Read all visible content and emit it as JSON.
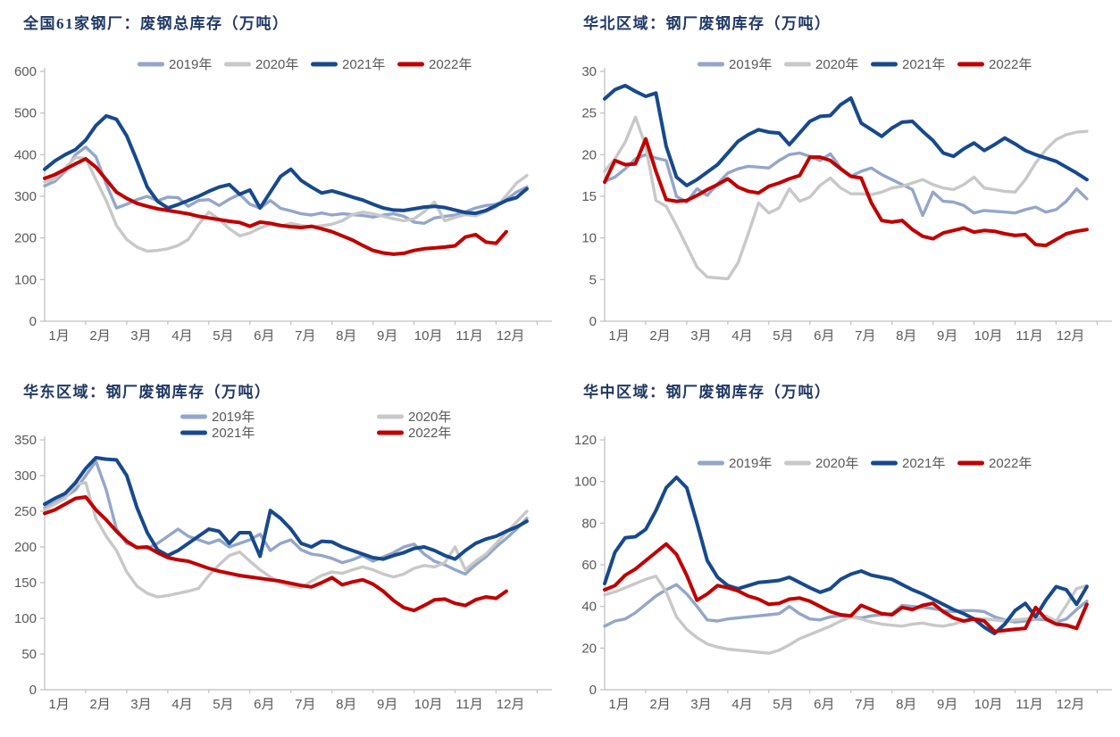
{
  "page": {
    "background": "#ffffff",
    "title_color": "#1F3864",
    "axis_text_color": "#595959",
    "axis_line_color": "#BFBFBF"
  },
  "chart_data": {
    "type": "line",
    "x_tick_labels": [
      "1月",
      "2月",
      "3月",
      "4月",
      "5月",
      "6月",
      "7月",
      "8月",
      "9月",
      "10月",
      "11月",
      "12月"
    ],
    "legend_entries": [
      "2019年",
      "2020年",
      "2021年",
      "2022年"
    ],
    "series_colors": {
      "2019年": "#94A6C9",
      "2020年": "#C8C8C8",
      "2021年": "#17498C",
      "2022年": "#C00000"
    },
    "grid": "off",
    "charts": [
      {
        "id": "national",
        "title": "全国61家钢厂：废钢总库存（万吨）",
        "ylim": [
          0,
          600
        ],
        "yticks": [
          0,
          100,
          200,
          300,
          400,
          500,
          600
        ],
        "legend_layout": "row",
        "series": [
          {
            "name": "2019年",
            "color": "#94A6C9",
            "values": [
              325,
              336,
              360,
              400,
              418,
              395,
              330,
              272,
              281,
              292,
              300,
              289,
              298,
              297,
              276,
              290,
              292,
              278,
              293,
              305,
              281,
              272,
              290,
              271,
              265,
              258,
              255,
              260,
              255,
              258,
              256,
              254,
              250,
              255,
              258,
              252,
              238,
              235,
              248,
              252,
              255,
              263,
              272,
              278,
              281,
              292,
              310,
              322
            ]
          },
          {
            "name": "2020年",
            "color": "#C8C8C8",
            "values": [
              335,
              342,
              368,
              393,
              391,
              340,
              290,
              230,
              196,
              178,
              168,
              170,
              174,
              182,
              196,
              232,
              262,
              245,
              222,
              205,
              212,
              224,
              233,
              228,
              235,
              230,
              226,
              229,
              233,
              241,
              256,
              262,
              258,
              252,
              246,
              241,
              246,
              263,
              286,
              241,
              249,
              256,
              253,
              263,
              274,
              302,
              332,
              350
            ]
          },
          {
            "name": "2021年",
            "color": "#17498C",
            "values": [
              365,
              385,
              400,
              412,
              435,
              470,
              493,
              485,
              445,
              385,
              322,
              288,
              272,
              280,
              290,
              300,
              312,
              322,
              328,
              305,
              315,
              272,
              310,
              348,
              365,
              338,
              322,
              308,
              313,
              306,
              298,
              291,
              281,
              272,
              267,
              266,
              270,
              274,
              276,
              273,
              267,
              261,
              259,
              266,
              278,
              290,
              297,
              318
            ]
          },
          {
            "name": "2022年",
            "color": "#C00000",
            "values": [
              343,
              352,
              365,
              378,
              390,
              370,
              340,
              310,
              295,
              283,
              276,
              270,
              266,
              262,
              258,
              252,
              248,
              244,
              240,
              237,
              228,
              238,
              235,
              230,
              227,
              225,
              228,
              222,
              215,
              205,
              195,
              182,
              170,
              164,
              161,
              163,
              170,
              174,
              176,
              178,
              181,
              202,
              208,
              190,
              187,
              215
            ]
          }
        ]
      },
      {
        "id": "north-china",
        "title": "华北区域：钢厂废钢库存（万吨）",
        "ylim": [
          0,
          30
        ],
        "yticks": [
          0,
          5,
          10,
          15,
          20,
          25,
          30
        ],
        "legend_layout": "row",
        "series": [
          {
            "name": "2019年",
            "color": "#94A6C9",
            "values": [
              16.8,
              17.3,
              18.3,
              19.5,
              20,
              19.6,
              19.3,
              15,
              14.3,
              15.9,
              15.1,
              16.5,
              17.8,
              18.3,
              18.6,
              18.5,
              18.4,
              19.3,
              20,
              20.2,
              19.8,
              19.3,
              20.1,
              18.4,
              17.4,
              18,
              18.4,
              17.6,
              17,
              16.4,
              15.8,
              12.7,
              15.5,
              14.4,
              14.3,
              13.9,
              13,
              13.3,
              13.2,
              13.1,
              13,
              13.4,
              13.7,
              13.1,
              13.4,
              14.4,
              15.9,
              14.7
            ]
          },
          {
            "name": "2020年",
            "color": "#C8C8C8",
            "values": [
              18,
              19.5,
              21.5,
              24.5,
              21,
              14.5,
              13.8,
              11.5,
              9,
              6.5,
              5.3,
              5.2,
              5.1,
              7,
              10.5,
              14.2,
              13,
              13.6,
              15.9,
              14.4,
              14.9,
              16.3,
              17.2,
              16,
              15.3,
              15.3,
              15.2,
              15.5,
              16,
              16.2,
              16.6,
              17,
              16.4,
              16,
              15.8,
              16.4,
              17.3,
              16,
              15.8,
              15.6,
              15.5,
              17,
              19,
              20.6,
              21.8,
              22.4,
              22.7,
              22.8
            ]
          },
          {
            "name": "2021年",
            "color": "#17498C",
            "values": [
              26.7,
              27.8,
              28.3,
              27.6,
              27,
              27.4,
              21,
              17.3,
              16.3,
              17,
              17.9,
              18.8,
              20.2,
              21.6,
              22.4,
              23,
              22.7,
              22.6,
              21.2,
              22.6,
              24,
              24.6,
              24.7,
              26,
              26.8,
              23.8,
              23,
              22.2,
              23.2,
              23.9,
              24,
              22.8,
              21.7,
              20.2,
              19.8,
              20.7,
              21.4,
              20.5,
              21.2,
              22,
              21.3,
              20.5,
              20,
              19.6,
              19.2,
              18.5,
              17.8,
              17
            ]
          },
          {
            "name": "2022年",
            "color": "#C00000",
            "values": [
              16.7,
              19.3,
              18.8,
              18.9,
              21.9,
              18,
              14.6,
              14.4,
              14.5,
              15.1,
              15.8,
              16.4,
              17.1,
              16.1,
              15.6,
              15.4,
              16.2,
              16.6,
              17.1,
              17.5,
              19.7,
              19.7,
              19.3,
              18.3,
              17.4,
              17.2,
              14.2,
              12.1,
              11.9,
              12.1,
              11,
              10.2,
              9.9,
              10.6,
              10.9,
              11.2,
              10.7,
              10.9,
              10.8,
              10.5,
              10.3,
              10.4,
              9.2,
              9.1,
              9.8,
              10.5,
              10.8,
              11
            ]
          }
        ]
      },
      {
        "id": "east-china",
        "title": "华东区域：钢厂废钢库存（万吨）",
        "ylim": [
          0,
          350
        ],
        "yticks": [
          0,
          50,
          100,
          150,
          200,
          250,
          300,
          350
        ],
        "legend_layout": "grid",
        "series": [
          {
            "name": "2019年",
            "color": "#94A6C9",
            "values": [
              255,
              262,
              270,
              280,
              300,
              320,
              280,
              225,
              205,
              200,
              198,
              205,
              215,
              225,
              215,
              210,
              205,
              210,
              200,
              205,
              210,
              218,
              195,
              205,
              210,
              196,
              190,
              188,
              184,
              178,
              182,
              188,
              180,
              186,
              192,
              200,
              204,
              190,
              180,
              175,
              168,
              162,
              175,
              186,
              200,
              212,
              225,
              240
            ]
          },
          {
            "name": "2020年",
            "color": "#C8C8C8",
            "values": [
              252,
              260,
              268,
              288,
              290,
              240,
              215,
              195,
              165,
              145,
              135,
              130,
              132,
              135,
              138,
              142,
              160,
              175,
              188,
              193,
              180,
              168,
              158,
              150,
              145,
              143,
              152,
              160,
              165,
              163,
              168,
              172,
              168,
              162,
              158,
              162,
              170,
              174,
              172,
              178,
              200,
              168,
              180,
              190,
              205,
              220,
              235,
              250
            ]
          },
          {
            "name": "2021年",
            "color": "#17498C",
            "values": [
              260,
              268,
              275,
              290,
              310,
              325,
              323,
              322,
              300,
              255,
              220,
              196,
              188,
              195,
              205,
              215,
              225,
              222,
              205,
              220,
              220,
              187,
              251,
              240,
              225,
              205,
              200,
              208,
              207,
              200,
              195,
              190,
              185,
              183,
              188,
              192,
              198,
              200,
              195,
              188,
              183,
              195,
              205,
              211,
              215,
              222,
              228,
              236
            ]
          },
          {
            "name": "2022年",
            "color": "#C00000",
            "values": [
              247,
              252,
              260,
              268,
              270,
              252,
              238,
              222,
              208,
              199,
              200,
              192,
              185,
              182,
              180,
              175,
              170,
              166,
              163,
              160,
              158,
              156,
              154,
              152,
              149,
              146,
              144,
              150,
              157,
              147,
              151,
              154,
              148,
              138,
              125,
              115,
              111,
              118,
              126,
              127,
              121,
              118,
              126,
              130,
              128,
              138
            ]
          }
        ]
      },
      {
        "id": "central-china",
        "title": "华中区域：钢厂废钢库存（万吨）",
        "ylim": [
          0,
          120
        ],
        "yticks": [
          0,
          20,
          40,
          60,
          80,
          100,
          120
        ],
        "legend_layout": "row-low",
        "series": [
          {
            "name": "2019年",
            "color": "#94A6C9",
            "values": [
              30.5,
              33,
              34,
              37,
              41,
              45,
              48,
              50.5,
              46,
              40,
              33.5,
              33,
              34,
              34.5,
              35,
              35.5,
              36,
              36.5,
              40,
              36.5,
              34,
              33.5,
              35,
              35.5,
              35,
              34.5,
              35.5,
              36,
              36.5,
              40.5,
              40,
              39.5,
              39,
              38,
              37.5,
              38,
              38,
              37.5,
              35,
              33.5,
              32.5,
              33,
              34,
              33.5,
              32.5,
              34,
              38.5,
              42.5
            ]
          },
          {
            "name": "2020年",
            "color": "#C8C8C8",
            "values": [
              45.5,
              47,
              49,
              51,
              53,
              54.5,
              47,
              35,
              29,
              25,
              22,
              20.5,
              19.5,
              19,
              18.5,
              18,
              17.5,
              19,
              21.5,
              24.5,
              26.5,
              28.5,
              30.5,
              33,
              35,
              34,
              32.5,
              31.5,
              31,
              30.5,
              31.5,
              32,
              31,
              30.5,
              31.5,
              33,
              34,
              34,
              33.5,
              33,
              33.5,
              34,
              34.5,
              35.5,
              33,
              40.5,
              48.5,
              50
            ]
          },
          {
            "name": "2021年",
            "color": "#17498C",
            "values": [
              51,
              66,
              73,
              73.5,
              77,
              86,
              97,
              102,
              97,
              80,
              62,
              54,
              50,
              48.5,
              50,
              51.5,
              52,
              52.5,
              54,
              51.5,
              49,
              46.8,
              48.5,
              53,
              55.5,
              57,
              55,
              54,
              53,
              50.5,
              48,
              46,
              43.5,
              41,
              38.5,
              36.5,
              34,
              30,
              27,
              31.5,
              38,
              41.5,
              35,
              43,
              49.5,
              48,
              41,
              49.5
            ]
          },
          {
            "name": "2022年",
            "color": "#C00000",
            "values": [
              48,
              50,
              55,
              58,
              62,
              66,
              70,
              65,
              55,
              43,
              46,
              50,
              49,
              47.5,
              45,
              43.5,
              41,
              41.5,
              43.5,
              44,
              42.5,
              40,
              37.5,
              36,
              35.5,
              40.5,
              38.5,
              36.5,
              36,
              39.5,
              38.5,
              40.5,
              41.5,
              37.5,
              34.5,
              33,
              34,
              33,
              28,
              28.5,
              29,
              29.5,
              39.5,
              34,
              31.5,
              31,
              29.5,
              41
            ]
          }
        ]
      }
    ]
  }
}
